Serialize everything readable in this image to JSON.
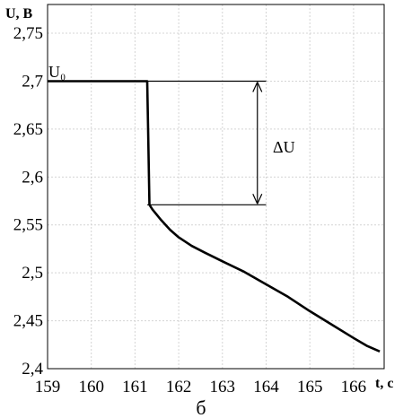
{
  "chart_data": {
    "type": "line",
    "ylabel": "U, B",
    "xlabel": "t, c",
    "caption": "б",
    "xlim": [
      159,
      166.7
    ],
    "ylim": [
      2.4,
      2.78
    ],
    "x_ticks": [
      "159",
      "160",
      "161",
      "162",
      "163",
      "164",
      "165",
      "166"
    ],
    "y_ticks": [
      "2,4",
      "2,45",
      "2,5",
      "2,55",
      "2,6",
      "2,65",
      "2,7",
      "2,75"
    ],
    "grid": true,
    "series": [
      {
        "x": [
          159.0,
          161.28,
          161.3,
          161.33,
          161.4,
          161.6,
          161.8,
          162.0,
          162.3,
          162.6,
          163.0,
          163.5,
          164.0,
          164.5,
          165.0,
          165.5,
          166.0,
          166.3,
          166.6
        ],
        "y": [
          2.7,
          2.7,
          2.65,
          2.571,
          2.566,
          2.555,
          2.545,
          2.537,
          2.528,
          2.521,
          2.512,
          2.501,
          2.488,
          2.475,
          2.46,
          2.446,
          2.432,
          2.424,
          2.418
        ]
      }
    ],
    "annotations": {
      "u0_label": "U₀",
      "delta_label": "ΔU",
      "u0_value": 2.7,
      "u_drop_value": 2.571,
      "line_x_start": 161.28,
      "line_x_end": 164.0,
      "arrow_x": 163.8
    }
  }
}
